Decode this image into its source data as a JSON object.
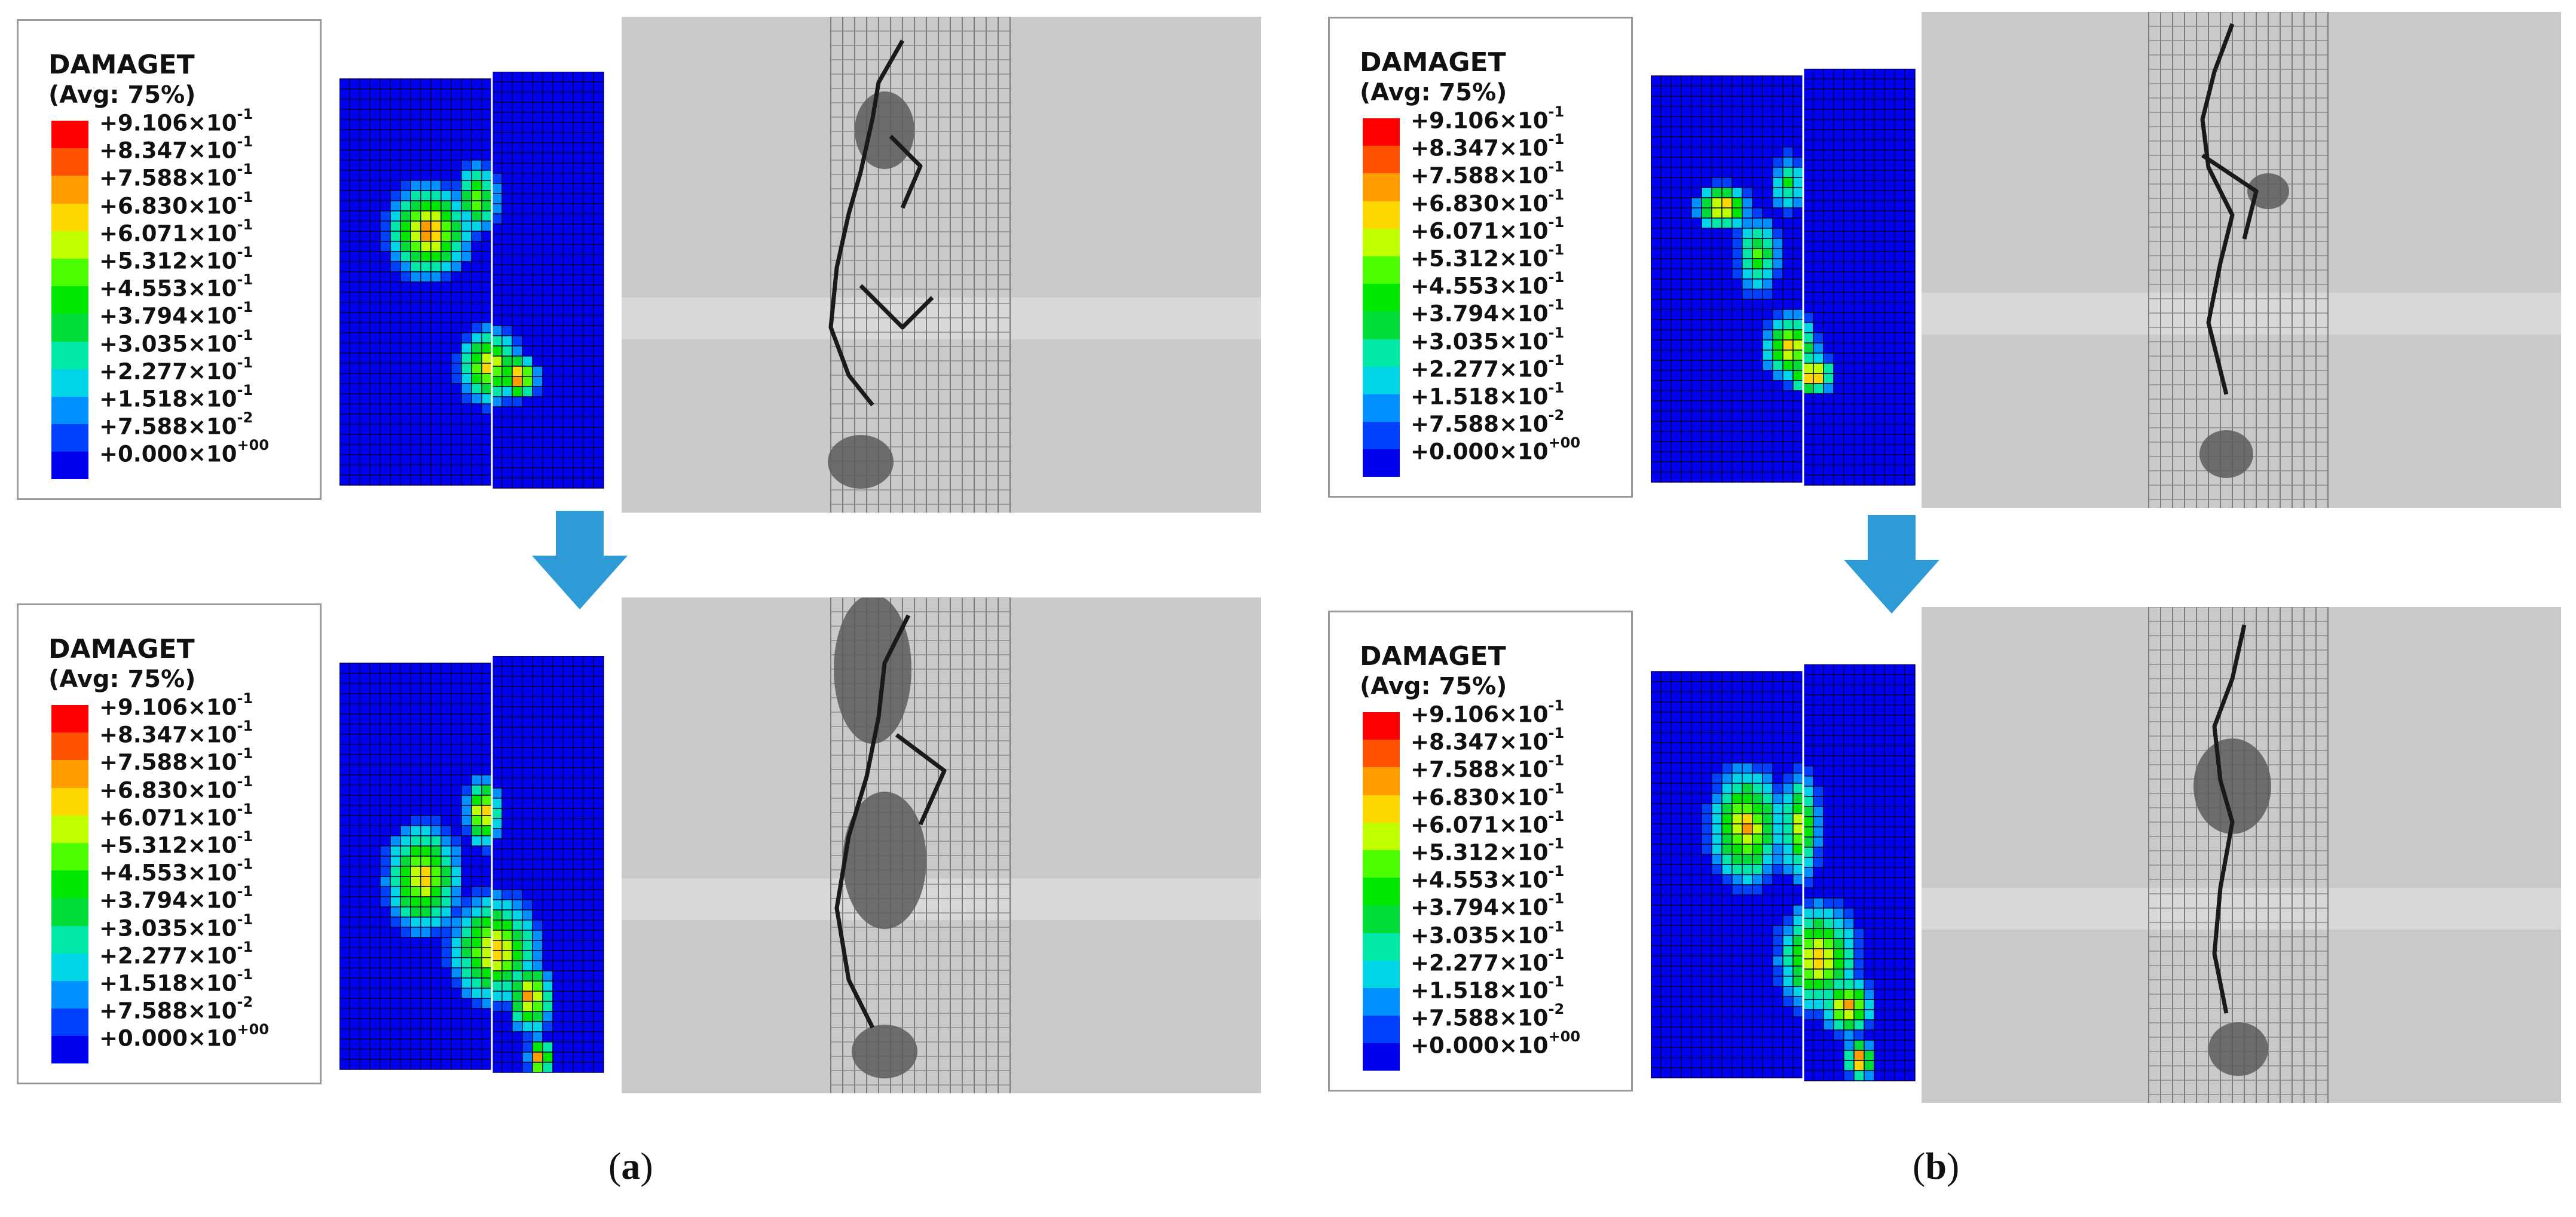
{
  "legend": {
    "title": "DAMAGET",
    "subtitle": "(Avg: 75%)",
    "colors": [
      "#ff0000",
      "#ff5200",
      "#ff9c00",
      "#ffd700",
      "#c0ff00",
      "#4cff00",
      "#00e800",
      "#00dc38",
      "#00e8a8",
      "#00d5e8",
      "#0090ff",
      "#0040ff",
      "#0000ee"
    ],
    "ticks": [
      {
        "mant": "+9.106",
        "exp": "-1"
      },
      {
        "mant": "+8.347",
        "exp": "-1"
      },
      {
        "mant": "+7.588",
        "exp": "-1"
      },
      {
        "mant": "+6.830",
        "exp": "-1"
      },
      {
        "mant": "+6.071",
        "exp": "-1"
      },
      {
        "mant": "+5.312",
        "exp": "-1"
      },
      {
        "mant": "+4.553",
        "exp": "-1"
      },
      {
        "mant": "+3.794",
        "exp": "-1"
      },
      {
        "mant": "+3.035",
        "exp": "-1"
      },
      {
        "mant": "+2.277",
        "exp": "-1"
      },
      {
        "mant": "+1.518",
        "exp": "-1"
      },
      {
        "mant": "+7.588",
        "exp": "-2"
      },
      {
        "mant": "+0.000",
        "exp": "+00"
      }
    ],
    "times_sign": "×10"
  },
  "captions": {
    "a": {
      "open": "(",
      "letter": "a",
      "close": ")"
    },
    "b": {
      "open": "(",
      "letter": "b",
      "close": ")"
    }
  },
  "arrow_color": "#2e9bd6",
  "mesh_color": "#0000ee"
}
